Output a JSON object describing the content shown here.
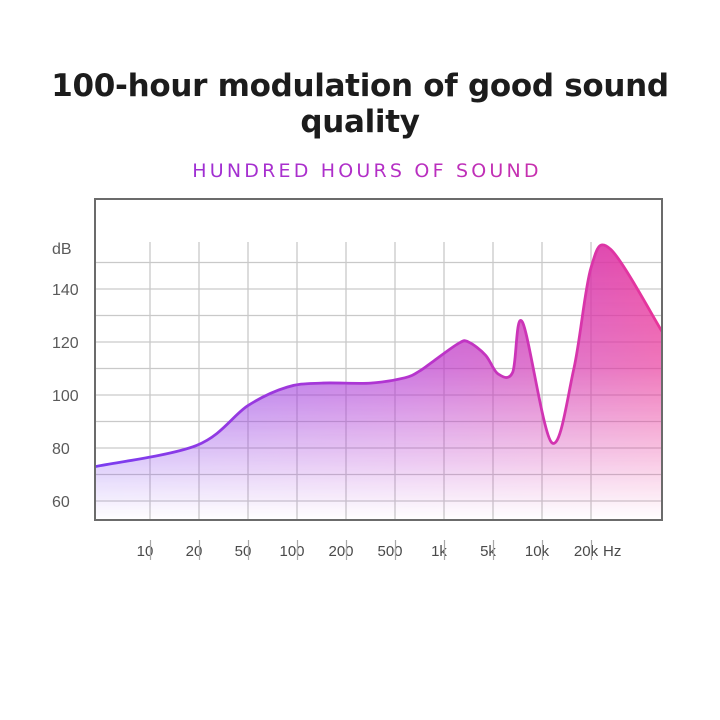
{
  "header": {
    "title": "100-hour modulation of good sound quality"
  },
  "chart_data": {
    "type": "area",
    "title": "HUNDRED HOURS OF SOUND",
    "ylabel": "dB",
    "xlabel": "Hz",
    "y_ticks": [
      60,
      80,
      100,
      120,
      140
    ],
    "ylim": [
      55,
      160
    ],
    "x_ticks": [
      "10",
      "20",
      "50",
      "100",
      "200",
      "500",
      "1k",
      "5k",
      "10k",
      "20k"
    ],
    "grid": true,
    "gradient_colors": [
      "#7a3df0",
      "#b534cf",
      "#e8359a"
    ],
    "series": [
      {
        "x": [
          0.0,
          0.95,
          2.0,
          2.8,
          3.5,
          4.5,
          5.2,
          5.5,
          5.8,
          6.3,
          6.5,
          6.85,
          7.1,
          7.4,
          7.6,
          8.2,
          8.65,
          9.0,
          9.4,
          10.2
        ],
        "y": [
          73,
          81,
          96,
          103,
          104.5,
          104.5,
          106.5,
          109,
          113,
          119.5,
          120,
          115,
          108,
          108.5,
          127.5,
          82,
          110,
          148,
          155,
          124
        ]
      }
    ]
  }
}
